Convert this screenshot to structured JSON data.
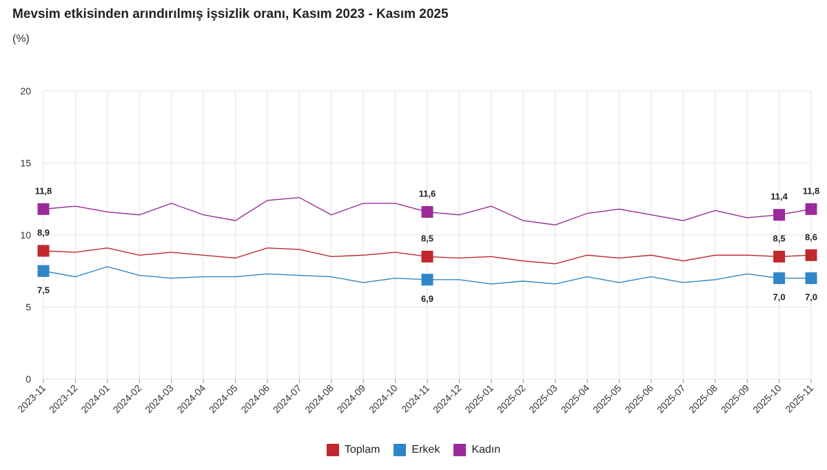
{
  "chart_data": {
    "type": "line",
    "title": "Mevsim etkisinden arındırılmış işsizlik oranı, Kasım 2023 - Kasım 2025",
    "subtitle": "(%)",
    "categories": [
      "2023-11",
      "2023-12",
      "2024-01",
      "2024-02",
      "2024-03",
      "2024-04",
      "2024-05",
      "2024-06",
      "2024-07",
      "2024-08",
      "2024-09",
      "2024-10",
      "2024-11",
      "2024-12",
      "2025-01",
      "2025-02",
      "2025-03",
      "2025-04",
      "2025-05",
      "2025-06",
      "2025-07",
      "2025-08",
      "2025-09",
      "2025-10",
      "2025-11"
    ],
    "ylim": [
      0,
      20
    ],
    "yticks": [
      0,
      5,
      10,
      15,
      20
    ],
    "grid": true,
    "legend_position": "bottom",
    "series": [
      {
        "name": "Toplam",
        "color": "#c0282d",
        "values": [
          8.9,
          8.8,
          9.1,
          8.6,
          8.8,
          8.6,
          8.4,
          9.1,
          9.0,
          8.5,
          8.6,
          8.8,
          8.5,
          8.4,
          8.5,
          8.2,
          8.0,
          8.6,
          8.4,
          8.6,
          8.2,
          8.6,
          8.6,
          8.5,
          8.6
        ],
        "labels": {
          "0": "8,9",
          "12": "8,5",
          "23": "8,5",
          "24": "8,6"
        }
      },
      {
        "name": "Erkek",
        "color": "#2e86c8",
        "values": [
          7.5,
          7.1,
          7.8,
          7.2,
          7.0,
          7.1,
          7.1,
          7.3,
          7.2,
          7.1,
          6.7,
          7.0,
          6.9,
          6.9,
          6.6,
          6.8,
          6.6,
          7.1,
          6.7,
          7.1,
          6.7,
          6.9,
          7.3,
          7.0,
          7.0
        ],
        "labels": {
          "0": "7,5",
          "12": "6,9",
          "23": "7,0",
          "24": "7,0"
        }
      },
      {
        "name": "Kadın",
        "color": "#9b2a99",
        "values": [
          11.8,
          12.0,
          11.6,
          11.4,
          12.2,
          11.4,
          11.0,
          12.4,
          12.6,
          11.4,
          12.2,
          12.2,
          11.6,
          11.4,
          12.0,
          11.0,
          10.7,
          11.5,
          11.8,
          11.4,
          11.0,
          11.7,
          11.2,
          11.4,
          11.8
        ],
        "labels": {
          "0": "11,8",
          "12": "11,6",
          "23": "11,4",
          "24": "11,8"
        }
      }
    ]
  }
}
